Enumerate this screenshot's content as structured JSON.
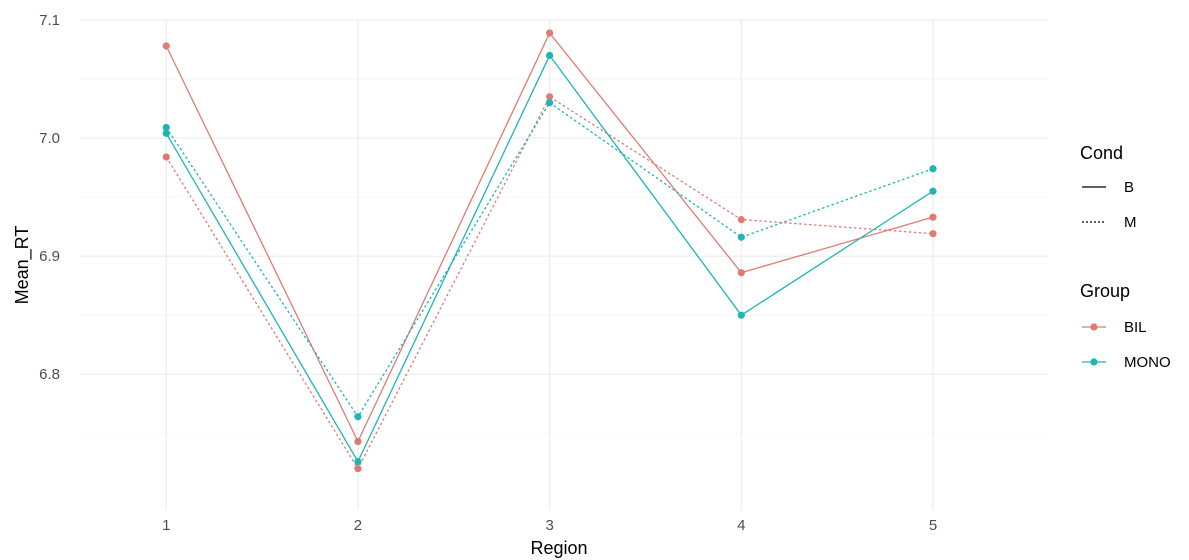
{
  "chart_data": {
    "type": "line",
    "title": "",
    "xlabel": "Region",
    "ylabel": "Mean_RT",
    "x": [
      1,
      2,
      3,
      4,
      5
    ],
    "x_tick_labels": [
      "1",
      "2",
      "3",
      "4",
      "5"
    ],
    "xlim": [
      0.55,
      5.6
    ],
    "y_ticks": [
      6.8,
      6.9,
      7.0,
      7.1
    ],
    "y_tick_labels": [
      "6.8",
      "6.9",
      "7.0",
      "7.1"
    ],
    "ylim": [
      6.685,
      7.1
    ],
    "grid": true,
    "legend_position": "right",
    "colors": {
      "BIL": "#e07b72",
      "MONO": "#1fb5b5",
      "grid_major": "#ebebeb",
      "grid_minor": "#f4f4f4"
    },
    "series": [
      {
        "group": "BIL",
        "cond": "B",
        "values": [
          7.078,
          6.743,
          7.089,
          6.886,
          6.933
        ]
      },
      {
        "group": "BIL",
        "cond": "M",
        "values": [
          6.984,
          6.72,
          7.035,
          6.931,
          6.919
        ]
      },
      {
        "group": "MONO",
        "cond": "B",
        "values": [
          7.004,
          6.726,
          7.07,
          6.85,
          6.955
        ]
      },
      {
        "group": "MONO",
        "cond": "M",
        "values": [
          7.009,
          6.764,
          7.03,
          6.916,
          6.974
        ]
      }
    ],
    "legend": {
      "cond_title": "Cond",
      "cond_items": [
        {
          "label": "B",
          "linetype": "solid"
        },
        {
          "label": "M",
          "linetype": "dotted"
        }
      ],
      "group_title": "Group",
      "group_items": [
        {
          "label": "BIL"
        },
        {
          "label": "MONO"
        }
      ]
    }
  }
}
